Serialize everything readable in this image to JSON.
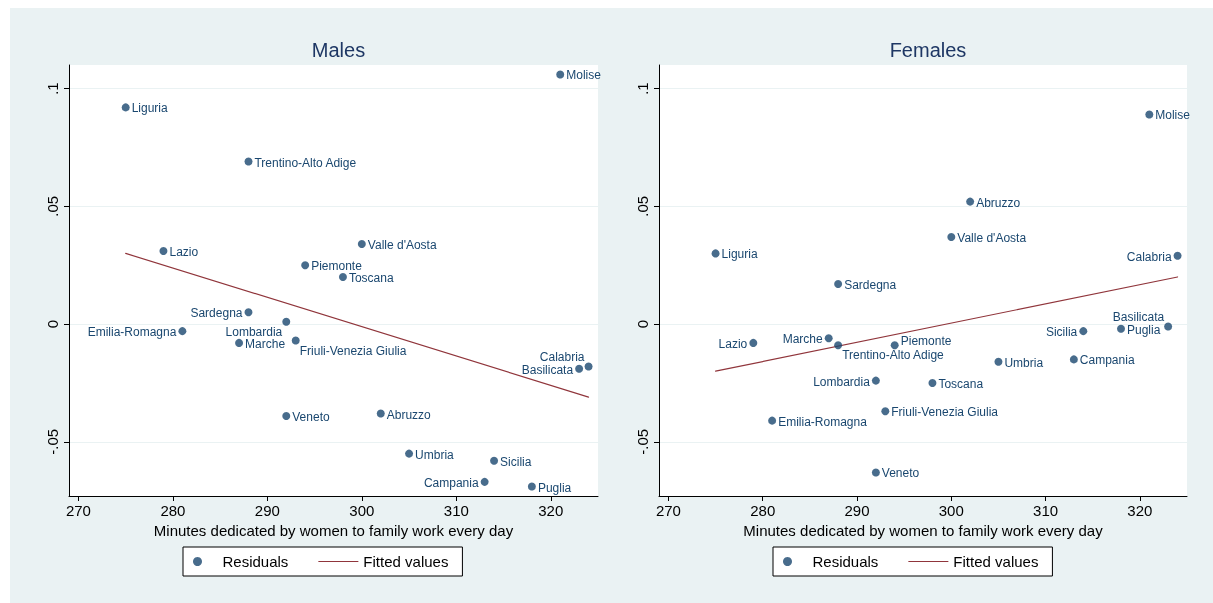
{
  "chart_data": [
    {
      "type": "scatter",
      "title": "Males",
      "xlabel": "Minutes dedicated by women to family work every day",
      "xlim": [
        269,
        325
      ],
      "xticks": [
        270,
        280,
        290,
        300,
        310,
        320
      ],
      "ylim": [
        -0.073,
        0.11
      ],
      "yticks": [
        {
          "value": -0.05,
          "label": "-.05"
        },
        0,
        {
          "value": 0.05,
          "label": ".05"
        },
        {
          "value": 0.1,
          "label": ".1"
        }
      ],
      "grid": "y",
      "legend": "bottom",
      "marker": "circle",
      "series": [
        {
          "name": "Residuals",
          "color": "#1a476f",
          "x": [
            275,
            279,
            281,
            287,
            288,
            288,
            292,
            292,
            293,
            294,
            298,
            300,
            302,
            305,
            313,
            314,
            318,
            321,
            323,
            324
          ],
          "values": [
            0.092,
            0.031,
            -0.003,
            -0.008,
            0.069,
            0.005,
            0.001,
            -0.039,
            -0.007,
            0.025,
            0.02,
            0.034,
            -0.038,
            -0.055,
            -0.067,
            -0.058,
            -0.069,
            0.106,
            -0.019,
            -0.018
          ]
        },
        {
          "name": "Fitted values",
          "type": "line",
          "color": "#90353b",
          "marker": "none",
          "x": [
            275,
            324
          ],
          "values": [
            0.03,
            -0.031
          ]
        }
      ],
      "annotations": [
        {
          "text": "Liguria",
          "x": 275,
          "y": 0.092
        },
        {
          "text": "Lazio",
          "x": 279,
          "y": 0.031
        },
        {
          "text": "Emilia-Romagna",
          "x": 281,
          "y": -0.003
        },
        {
          "text": "Marche",
          "x": 287,
          "y": -0.008
        },
        {
          "text": "Trentino-Alto Adige",
          "x": 288,
          "y": 0.069
        },
        {
          "text": "Sardegna",
          "x": 288,
          "y": 0.005
        },
        {
          "text": "Lombardia",
          "x": 292,
          "y": 0.001
        },
        {
          "text": "Veneto",
          "x": 292,
          "y": -0.039
        },
        {
          "text": "Friuli-Venezia Giulia",
          "x": 293,
          "y": -0.007
        },
        {
          "text": "Piemonte",
          "x": 294,
          "y": 0.025
        },
        {
          "text": "Toscana",
          "x": 298,
          "y": 0.02
        },
        {
          "text": "Valle d'Aosta",
          "x": 300,
          "y": 0.034
        },
        {
          "text": "Abruzzo",
          "x": 302,
          "y": -0.038
        },
        {
          "text": "Umbria",
          "x": 305,
          "y": -0.055
        },
        {
          "text": "Campania",
          "x": 313,
          "y": -0.067
        },
        {
          "text": "Sicilia",
          "x": 314,
          "y": -0.058
        },
        {
          "text": "Puglia",
          "x": 318,
          "y": -0.069
        },
        {
          "text": "Molise",
          "x": 321,
          "y": 0.106
        },
        {
          "text": "Basilicata",
          "x": 323,
          "y": -0.019
        },
        {
          "text": "Calabria",
          "x": 324,
          "y": -0.018
        }
      ]
    },
    {
      "type": "scatter",
      "title": "Females",
      "xlabel": "Minutes dedicated by women to family work every day",
      "xlim": [
        269,
        325
      ],
      "xticks": [
        270,
        280,
        290,
        300,
        310,
        320
      ],
      "ylim": [
        -0.073,
        0.11
      ],
      "yticks": [
        {
          "value": -0.05,
          "label": "-.05"
        },
        0,
        {
          "value": 0.05,
          "label": ".05"
        },
        {
          "value": 0.1,
          "label": ".1"
        }
      ],
      "grid": "y",
      "legend": "bottom",
      "marker": "circle",
      "series": [
        {
          "name": "Residuals",
          "color": "#1a476f",
          "x": [
            275,
            279,
            281,
            287,
            288,
            288,
            292,
            292,
            293,
            294,
            298,
            300,
            302,
            305,
            313,
            314,
            318,
            321,
            323,
            324
          ],
          "values": [
            0.03,
            -0.008,
            -0.041,
            -0.006,
            -0.009,
            0.017,
            -0.024,
            -0.063,
            -0.037,
            -0.009,
            -0.025,
            0.037,
            0.052,
            -0.016,
            -0.015,
            -0.003,
            -0.002,
            0.089,
            -0.001,
            0.029
          ]
        },
        {
          "name": "Fitted values",
          "type": "line",
          "color": "#90353b",
          "marker": "none",
          "x": [
            275,
            324
          ],
          "values": [
            -0.02,
            0.02
          ]
        }
      ],
      "annotations": [
        {
          "text": "Liguria",
          "x": 275,
          "y": 0.03
        },
        {
          "text": "Lazio",
          "x": 279,
          "y": -0.008
        },
        {
          "text": "Emilia-Romagna",
          "x": 281,
          "y": -0.041
        },
        {
          "text": "Marche",
          "x": 287,
          "y": -0.006
        },
        {
          "text": "Trentino-Alto Adige",
          "x": 288,
          "y": -0.009
        },
        {
          "text": "Sardegna",
          "x": 288,
          "y": 0.017
        },
        {
          "text": "Lombardia",
          "x": 292,
          "y": -0.024
        },
        {
          "text": "Veneto",
          "x": 292,
          "y": -0.063
        },
        {
          "text": "Friuli-Venezia Giulia",
          "x": 293,
          "y": -0.037
        },
        {
          "text": "Piemonte",
          "x": 294,
          "y": -0.009
        },
        {
          "text": "Toscana",
          "x": 298,
          "y": -0.025
        },
        {
          "text": "Valle d'Aosta",
          "x": 300,
          "y": 0.037
        },
        {
          "text": "Abruzzo",
          "x": 302,
          "y": 0.052
        },
        {
          "text": "Umbria",
          "x": 305,
          "y": -0.016
        },
        {
          "text": "Campania",
          "x": 313,
          "y": -0.015
        },
        {
          "text": "Sicilia",
          "x": 314,
          "y": -0.003
        },
        {
          "text": "Puglia",
          "x": 318,
          "y": -0.002
        },
        {
          "text": "Molise",
          "x": 321,
          "y": 0.089
        },
        {
          "text": "Basilicata",
          "x": 323,
          "y": -0.001
        },
        {
          "text": "Calabria",
          "x": 324,
          "y": 0.029
        }
      ]
    }
  ]
}
